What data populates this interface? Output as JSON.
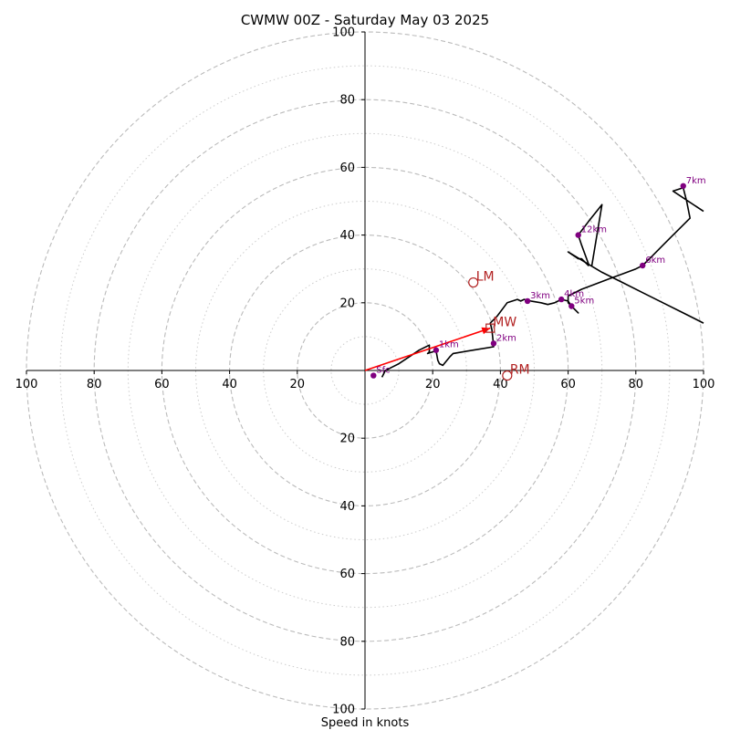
{
  "chart_data": {
    "type": "hodograph",
    "title": "CWMW 00Z - Saturday May 03 2025",
    "xlabel": "Speed in knots",
    "xlim": [
      -100,
      100
    ],
    "ylim": [
      -100,
      100
    ],
    "major_rings": [
      20,
      40,
      60,
      80,
      100
    ],
    "minor_rings": [
      10,
      30,
      50,
      70,
      90
    ],
    "x_ticks": [
      {
        "value": -100,
        "label": "100"
      },
      {
        "value": -80,
        "label": "80"
      },
      {
        "value": -60,
        "label": "60"
      },
      {
        "value": -40,
        "label": "40"
      },
      {
        "value": -20,
        "label": "20"
      },
      {
        "value": 20,
        "label": "20"
      },
      {
        "value": 40,
        "label": "40"
      },
      {
        "value": 60,
        "label": "60"
      },
      {
        "value": 80,
        "label": "80"
      },
      {
        "value": 100,
        "label": "100"
      }
    ],
    "y_ticks": [
      {
        "value": 100,
        "label": "100"
      },
      {
        "value": 80,
        "label": "80"
      },
      {
        "value": 60,
        "label": "60"
      },
      {
        "value": 40,
        "label": "40"
      },
      {
        "value": 20,
        "label": "20"
      },
      {
        "value": -20,
        "label": "20"
      },
      {
        "value": -40,
        "label": "40"
      },
      {
        "value": -60,
        "label": "60"
      },
      {
        "value": -80,
        "label": "80"
      },
      {
        "value": -100,
        "label": "100"
      }
    ],
    "trace": [
      [
        5,
        -2
      ],
      [
        6,
        0
      ],
      [
        8,
        1
      ],
      [
        10,
        2
      ],
      [
        13,
        4
      ],
      [
        16,
        6
      ],
      [
        19,
        7.5
      ],
      [
        19,
        5.5
      ],
      [
        18.5,
        5
      ],
      [
        21,
        5.8
      ],
      [
        21.5,
        3
      ],
      [
        22,
        2
      ],
      [
        23,
        1.5
      ],
      [
        25,
        4
      ],
      [
        26,
        5
      ],
      [
        32,
        6
      ],
      [
        38,
        7
      ],
      [
        37.5,
        12
      ],
      [
        37,
        14
      ],
      [
        39,
        16
      ],
      [
        42,
        20
      ],
      [
        45,
        21
      ],
      [
        46,
        20.5
      ],
      [
        47,
        21
      ],
      [
        49,
        20.5
      ],
      [
        52,
        20
      ],
      [
        54,
        19.5
      ],
      [
        56,
        20
      ],
      [
        58,
        21
      ],
      [
        60,
        20.5
      ],
      [
        61,
        19
      ],
      [
        62,
        18
      ],
      [
        63,
        17
      ],
      [
        60,
        20
      ],
      [
        60,
        22
      ],
      [
        64,
        24
      ],
      [
        68,
        25.5
      ],
      [
        72,
        27
      ],
      [
        76,
        28.5
      ],
      [
        80,
        30
      ],
      [
        82,
        31
      ],
      [
        85,
        34
      ],
      [
        88,
        37
      ],
      [
        91,
        40
      ],
      [
        96,
        45
      ],
      [
        95,
        50
      ],
      [
        94,
        54
      ],
      [
        91,
        53
      ],
      [
        100,
        47
      ]
    ],
    "trace_upper": [
      [
        100,
        14
      ],
      [
        94,
        17
      ],
      [
        88,
        20
      ],
      [
        82,
        23
      ],
      [
        76,
        26
      ],
      [
        70,
        29
      ],
      [
        65,
        32
      ],
      [
        60,
        35
      ],
      [
        63,
        33
      ],
      [
        64,
        33
      ],
      [
        66,
        31
      ],
      [
        66,
        31.5
      ],
      [
        64,
        37
      ],
      [
        63,
        40
      ],
      [
        66,
        44
      ],
      [
        70,
        49
      ],
      [
        67,
        31
      ]
    ],
    "height_markers": [
      {
        "label": "Sfc",
        "x": 2.5,
        "y": -1.5
      },
      {
        "label": "1km",
        "x": 21,
        "y": 6
      },
      {
        "label": "2km",
        "x": 38,
        "y": 8
      },
      {
        "label": "3km",
        "x": 48,
        "y": 20.5
      },
      {
        "label": "4km",
        "x": 58,
        "y": 21
      },
      {
        "label": "5km",
        "x": 61,
        "y": 19
      },
      {
        "label": "6km",
        "x": 82,
        "y": 31
      },
      {
        "label": "7km",
        "x": 94,
        "y": 54.5
      },
      {
        "label": "12km",
        "x": 63,
        "y": 40
      }
    ],
    "motion_markers": [
      {
        "label": "LM",
        "x": 32,
        "y": 26,
        "shape": "circle"
      },
      {
        "label": "MW",
        "x": 37,
        "y": 12.5,
        "shape": "square"
      },
      {
        "label": "RM",
        "x": 42,
        "y": -1.5,
        "shape": "circle"
      }
    ],
    "motion_vector": {
      "x0": 0,
      "y0": 0,
      "x1": 37,
      "y1": 12.5
    },
    "colors": {
      "trace": "#000000",
      "height_marker": "#800080",
      "motion": "#b22222",
      "vector": "#ff0000",
      "ring_major": "#bbbbbb",
      "ring_minor": "#cccccc"
    }
  }
}
